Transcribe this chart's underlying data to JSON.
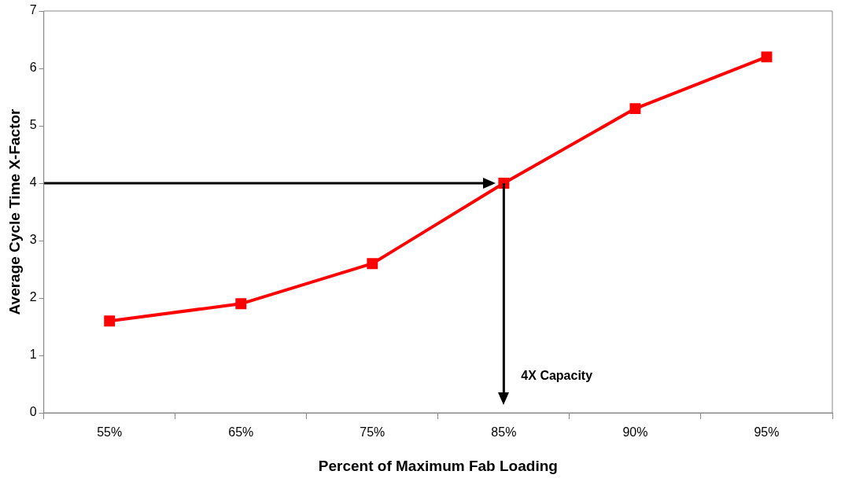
{
  "chart_data": {
    "type": "line",
    "xlabel": "Percent of Maximum Fab Loading",
    "ylabel": "Average Cycle Time X-Factor",
    "categories": [
      "55%",
      "65%",
      "75%",
      "85%",
      "90%",
      "95%"
    ],
    "series": [
      {
        "color": "#ff0000",
        "values": [
          1.6,
          1.9,
          2.6,
          4.0,
          5.3,
          6.2
        ]
      }
    ],
    "ylim": [
      0,
      7
    ],
    "yticks": [
      0,
      1,
      2,
      3,
      4,
      5,
      6,
      7
    ],
    "grid": false,
    "legend": false,
    "marker": "square",
    "line_style": "solid",
    "ref_lines": [
      {
        "axis": "y",
        "value": 4,
        "color": "#000000"
      },
      {
        "axis": "x",
        "value": "85%",
        "color": "#000000",
        "label": "4X Capacity"
      }
    ]
  }
}
